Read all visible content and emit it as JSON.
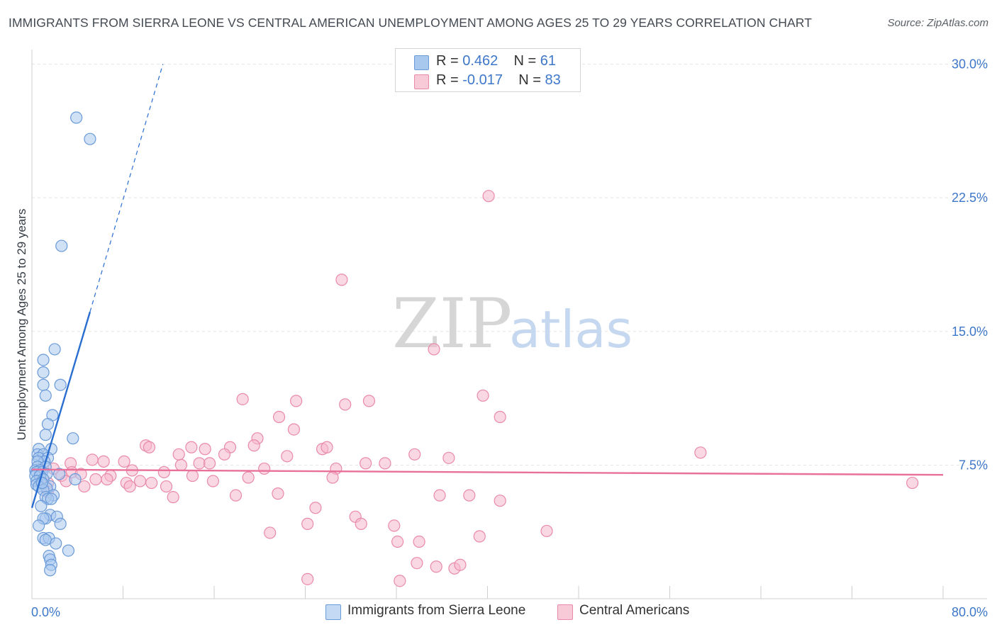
{
  "title": "IMMIGRANTS FROM SIERRA LEONE VS CENTRAL AMERICAN UNEMPLOYMENT AMONG AGES 25 TO 29 YEARS CORRELATION CHART",
  "source": "Source: ZipAtlas.com",
  "watermark": {
    "zip": "ZIP",
    "atlas": "atlas"
  },
  "colors": {
    "blue_fill": "#a9c8ee",
    "blue_stroke": "#6a9ad8",
    "blue_line": "#2a6ed0",
    "pink_fill": "#f5b8cc",
    "pink_stroke": "#e98aa8",
    "pink_line": "#e8709a",
    "axis_text": "#3d77c9",
    "grid": "#e3e3e3"
  },
  "legend": {
    "rows": [
      {
        "r_label": "R = ",
        "r_value": "0.462",
        "n_label": "N = ",
        "n_value": "61"
      },
      {
        "r_label": "R = ",
        "r_value": "-0.017",
        "n_label": "N = ",
        "n_value": "83"
      }
    ]
  },
  "chart_data": {
    "type": "scatter",
    "title": "IMMIGRANTS FROM SIERRA LEONE VS CENTRAL AMERICAN UNEMPLOYMENT AMONG AGES 25 TO 29 YEARS CORRELATION CHART",
    "xlabel": "",
    "ylabel": "Unemployment Among Ages 25 to 29 years",
    "xlim": [
      0,
      80
    ],
    "ylim": [
      0,
      30.5
    ],
    "x_tick_labels": [
      "0.0%",
      "80.0%"
    ],
    "y_ticks": [
      7.5,
      15.0,
      22.5,
      30.0
    ],
    "y_tick_labels": [
      "7.5%",
      "15.0%",
      "22.5%",
      "30.0%"
    ],
    "grid": true,
    "series": [
      {
        "name": "Immigrants from Sierra Leone",
        "color": "blue",
        "R": 0.462,
        "N": 61,
        "trend": {
          "x0": 0.0,
          "y0": 5.1,
          "x1": 5.1,
          "y1": 16.1,
          "dash_x1": 11.5,
          "dash_y1": 30.0
        },
        "points": [
          [
            3.9,
            27.0
          ],
          [
            5.1,
            25.8
          ],
          [
            2.6,
            19.8
          ],
          [
            2.0,
            14.0
          ],
          [
            1.0,
            13.4
          ],
          [
            1.0,
            12.7
          ],
          [
            2.5,
            12.0
          ],
          [
            1.0,
            12.0
          ],
          [
            1.2,
            11.4
          ],
          [
            1.8,
            10.3
          ],
          [
            1.4,
            9.8
          ],
          [
            1.2,
            9.2
          ],
          [
            3.6,
            9.0
          ],
          [
            1.7,
            8.4
          ],
          [
            0.6,
            8.4
          ],
          [
            0.5,
            8.1
          ],
          [
            1.0,
            8.1
          ],
          [
            0.6,
            7.9
          ],
          [
            1.4,
            7.9
          ],
          [
            1.1,
            7.7
          ],
          [
            0.5,
            7.7
          ],
          [
            0.5,
            7.4
          ],
          [
            1.2,
            7.4
          ],
          [
            0.3,
            7.2
          ],
          [
            0.7,
            7.2
          ],
          [
            0.4,
            7.1
          ],
          [
            0.9,
            7.1
          ],
          [
            2.4,
            7.0
          ],
          [
            1.3,
            7.0
          ],
          [
            0.3,
            6.9
          ],
          [
            0.7,
            6.9
          ],
          [
            1.0,
            6.7
          ],
          [
            3.8,
            6.7
          ],
          [
            0.4,
            6.6
          ],
          [
            0.8,
            6.5
          ],
          [
            0.4,
            6.4
          ],
          [
            1.6,
            6.3
          ],
          [
            0.6,
            6.3
          ],
          [
            1.3,
            6.2
          ],
          [
            1.0,
            6.1
          ],
          [
            1.9,
            5.8
          ],
          [
            1.2,
            5.7
          ],
          [
            1.4,
            5.6
          ],
          [
            1.7,
            5.6
          ],
          [
            0.8,
            5.2
          ],
          [
            1.6,
            4.7
          ],
          [
            2.2,
            4.6
          ],
          [
            1.2,
            4.5
          ],
          [
            1.0,
            4.5
          ],
          [
            0.6,
            4.1
          ],
          [
            2.5,
            4.2
          ],
          [
            1.0,
            3.4
          ],
          [
            1.5,
            3.4
          ],
          [
            1.2,
            3.3
          ],
          [
            2.1,
            3.1
          ],
          [
            3.2,
            2.7
          ],
          [
            1.5,
            2.4
          ],
          [
            1.6,
            2.2
          ],
          [
            1.7,
            1.9
          ],
          [
            1.6,
            1.6
          ],
          [
            0.9,
            6.5
          ]
        ]
      },
      {
        "name": "Central Americans",
        "color": "pink",
        "R": -0.017,
        "N": 83,
        "trend": {
          "x0": 0.0,
          "y0": 7.25,
          "x1": 80.0,
          "y1": 6.95
        },
        "points": [
          [
            40.1,
            22.6
          ],
          [
            27.2,
            17.9
          ],
          [
            35.3,
            14.0
          ],
          [
            18.5,
            11.2
          ],
          [
            23.2,
            11.1
          ],
          [
            27.5,
            10.9
          ],
          [
            29.6,
            11.1
          ],
          [
            39.6,
            11.4
          ],
          [
            21.7,
            10.2
          ],
          [
            41.1,
            10.2
          ],
          [
            23.0,
            9.5
          ],
          [
            19.8,
            9.0
          ],
          [
            10.0,
            8.6
          ],
          [
            19.5,
            8.6
          ],
          [
            10.3,
            8.5
          ],
          [
            14.0,
            8.5
          ],
          [
            15.2,
            8.4
          ],
          [
            17.4,
            8.5
          ],
          [
            25.5,
            8.4
          ],
          [
            25.9,
            8.5
          ],
          [
            12.9,
            8.1
          ],
          [
            16.9,
            8.1
          ],
          [
            22.4,
            8.0
          ],
          [
            33.6,
            8.1
          ],
          [
            36.6,
            7.9
          ],
          [
            58.7,
            8.2
          ],
          [
            5.3,
            7.8
          ],
          [
            6.3,
            7.7
          ],
          [
            8.1,
            7.7
          ],
          [
            3.4,
            7.6
          ],
          [
            14.7,
            7.6
          ],
          [
            15.6,
            7.6
          ],
          [
            13.1,
            7.5
          ],
          [
            29.3,
            7.6
          ],
          [
            31.0,
            7.6
          ],
          [
            26.7,
            7.3
          ],
          [
            20.4,
            7.3
          ],
          [
            8.8,
            7.2
          ],
          [
            11.6,
            7.1
          ],
          [
            3.5,
            7.1
          ],
          [
            1.9,
            7.3
          ],
          [
            4.3,
            7.0
          ],
          [
            2.6,
            6.9
          ],
          [
            0.8,
            7.2
          ],
          [
            6.9,
            6.9
          ],
          [
            14.1,
            6.9
          ],
          [
            19.0,
            6.8
          ],
          [
            26.4,
            6.8
          ],
          [
            5.6,
            6.7
          ],
          [
            6.6,
            6.7
          ],
          [
            8.3,
            6.5
          ],
          [
            9.5,
            6.6
          ],
          [
            10.5,
            6.5
          ],
          [
            15.9,
            6.6
          ],
          [
            3.0,
            6.6
          ],
          [
            1.4,
            6.5
          ],
          [
            4.6,
            6.3
          ],
          [
            8.6,
            6.3
          ],
          [
            11.8,
            6.3
          ],
          [
            1.4,
            6.0
          ],
          [
            21.6,
            5.9
          ],
          [
            17.9,
            5.8
          ],
          [
            35.8,
            5.8
          ],
          [
            38.4,
            5.8
          ],
          [
            41.1,
            5.5
          ],
          [
            12.4,
            5.7
          ],
          [
            24.9,
            5.1
          ],
          [
            28.4,
            4.6
          ],
          [
            28.9,
            4.2
          ],
          [
            24.2,
            4.2
          ],
          [
            31.8,
            4.1
          ],
          [
            20.9,
            3.7
          ],
          [
            45.2,
            3.8
          ],
          [
            39.3,
            3.5
          ],
          [
            32.1,
            3.2
          ],
          [
            34.0,
            3.2
          ],
          [
            33.8,
            2.0
          ],
          [
            35.5,
            1.8
          ],
          [
            37.1,
            1.7
          ],
          [
            37.6,
            1.9
          ],
          [
            32.3,
            1.0
          ],
          [
            24.2,
            1.1
          ],
          [
            77.3,
            6.5
          ]
        ]
      }
    ]
  },
  "bottom_legend": [
    {
      "label": "Immigrants from Sierra Leone"
    },
    {
      "label": "Central Americans"
    }
  ]
}
